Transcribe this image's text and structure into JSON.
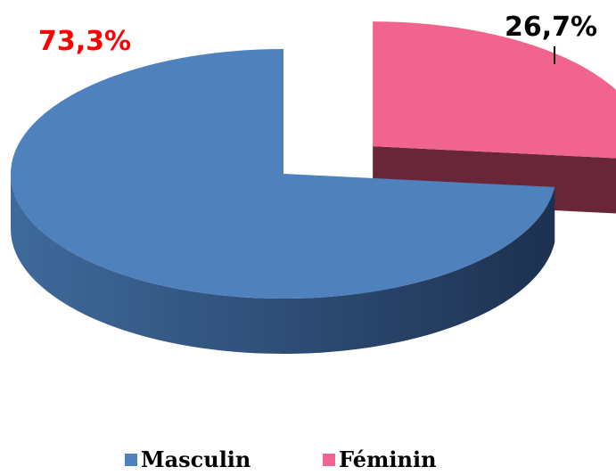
{
  "chart_data": {
    "type": "pie",
    "categories": [
      "Masculin",
      "Féminin"
    ],
    "values": [
      73.3,
      26.7
    ],
    "value_labels": [
      "73,3%",
      "26,7%"
    ],
    "colors": [
      "#4f81bd",
      "#f0648f"
    ],
    "label_colors": [
      "#ff0000",
      "#000000"
    ],
    "legend": "bottom"
  }
}
